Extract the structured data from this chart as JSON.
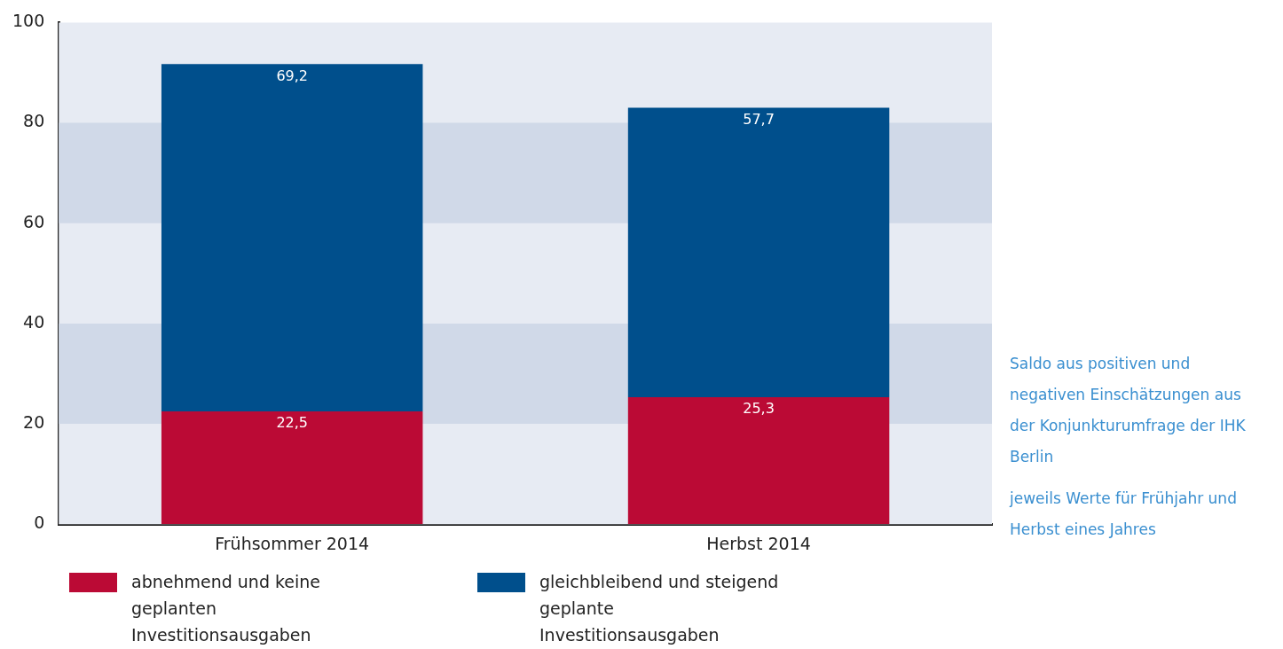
{
  "chart_data": {
    "type": "bar",
    "stacked": true,
    "categories": [
      "Frühsommer 2014",
      "Herbst 2014"
    ],
    "series": [
      {
        "name": "abnehmend und keine geplanten Investitionsausgaben",
        "color": "#bb0a35",
        "values": [
          22.5,
          25.3
        ],
        "value_labels": [
          "22,5",
          "25,3"
        ]
      },
      {
        "name": "gleichbleibend und steigend geplante Investitionsausgaben",
        "color": "#004f8c",
        "values": [
          69.2,
          57.7
        ],
        "value_labels": [
          "69,2",
          "57,7"
        ]
      }
    ],
    "ylim": [
      0,
      100
    ],
    "yticks": [
      0,
      20,
      40,
      60,
      80,
      100
    ],
    "grid": false,
    "legend": "bottom",
    "bands": [
      {
        "axis": "y",
        "from": 20,
        "to": 40,
        "color": "#d0d9e8"
      },
      {
        "axis": "y",
        "from": 60,
        "to": 80,
        "color": "#d0d9e8"
      }
    ],
    "annotations": [
      "Saldo aus positiven und negativen Einschätzungen aus der Konjunkturumfrage der IHK Berlin",
      "jeweils Werte für Frühjahr und Herbst eines Jahres"
    ]
  }
}
